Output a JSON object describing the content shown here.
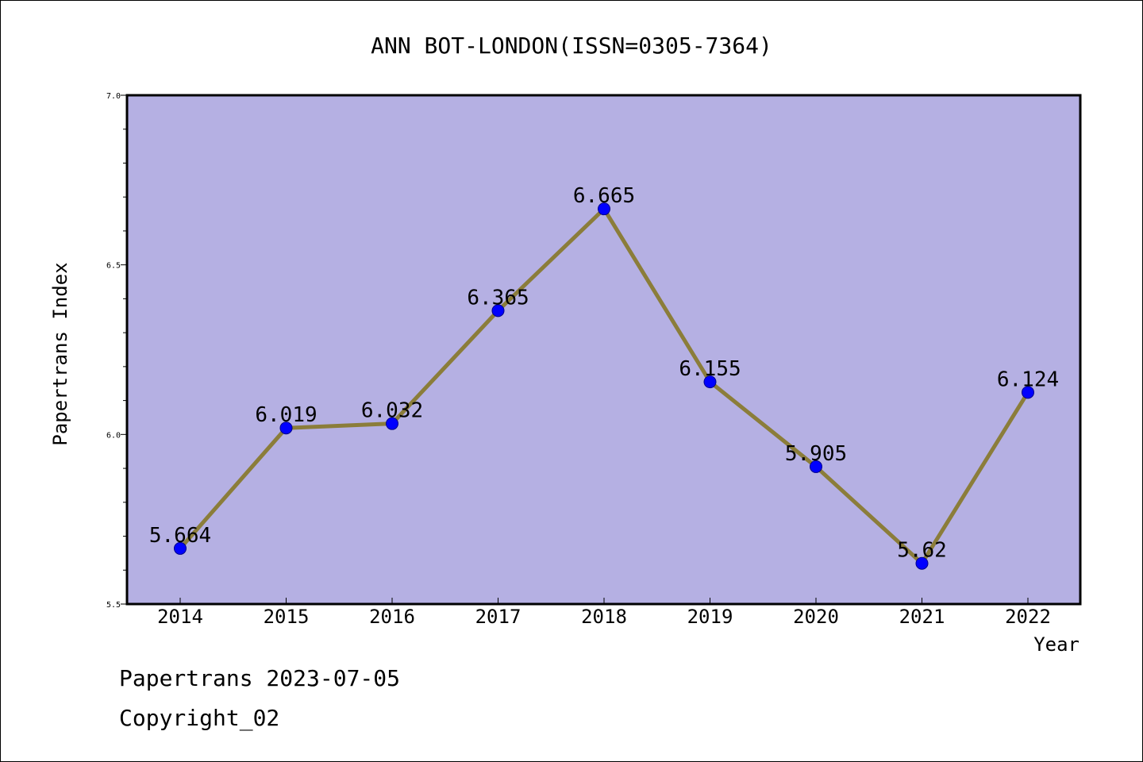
{
  "chart_data": {
    "type": "line",
    "title": "ANN BOT-LONDON(ISSN=0305-7364)",
    "xlabel": "Year",
    "ylabel": "Papertrans Index",
    "categories": [
      "2014",
      "2015",
      "2016",
      "2017",
      "2018",
      "2019",
      "2020",
      "2021",
      "2022"
    ],
    "series": [
      {
        "values": [
          5.664,
          6.019,
          6.032,
          6.365,
          6.665,
          6.155,
          5.905,
          5.62,
          6.124
        ],
        "labels": [
          "5.664",
          "6.019",
          "6.032",
          "6.365",
          "6.665",
          "6.155",
          "5.905",
          "5.62",
          "6.124"
        ],
        "line_color": "#8b7d3a",
        "marker_color": "#0000ff"
      }
    ],
    "ylim": [
      5.5,
      7.0
    ],
    "yticks": [
      "5.5",
      "6.0",
      "6.5",
      "7.0"
    ],
    "plot_background": "#b5b0e3",
    "grid": false,
    "legend": "none"
  },
  "footer": {
    "line1": "Papertrans 2023-07-05",
    "line2": "Copyright_02"
  }
}
